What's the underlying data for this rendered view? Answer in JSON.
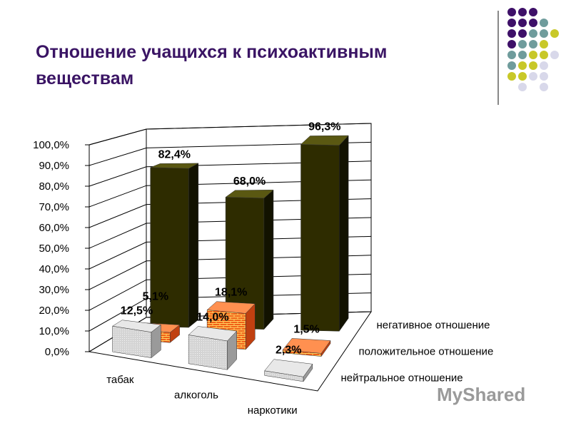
{
  "slide": {
    "title_line1": "Отношение учащихся к психоактивным",
    "title_line2": "веществам",
    "watermark": "MyShared",
    "colors": {
      "title": "#3a1464",
      "purple": "#3e1068",
      "teal": "#6f9c9c",
      "yellow": "#c8c828",
      "lavender": "#d8d8ea"
    }
  },
  "chart_data": {
    "type": "bar",
    "subtype": "3d-column",
    "categories": [
      "табак",
      "алкоголь",
      "наркотики"
    ],
    "series": [
      {
        "name": "нейтральное отношение",
        "values": [
          12.5,
          14.0,
          2.3
        ],
        "labels": [
          "12,5%",
          "14,0%",
          "2,3%"
        ],
        "color": "#cfcfcf"
      },
      {
        "name": "положительное отношение",
        "values": [
          5.1,
          18.1,
          1.5
        ],
        "labels": [
          "5,1%",
          "18,1%",
          "1,5%"
        ],
        "color": "#f06018"
      },
      {
        "name": "негативное отношение",
        "values": [
          82.4,
          68.0,
          96.3
        ],
        "labels": [
          "82,4%",
          "68,0%",
          "96,3%"
        ],
        "color": "#2e2c00"
      }
    ],
    "yticks": [
      "0,0%",
      "10,0%",
      "20,0%",
      "30,0%",
      "40,0%",
      "50,0%",
      "60,0%",
      "70,0%",
      "80,0%",
      "90,0%",
      "100,0%"
    ],
    "ylim": [
      0,
      100
    ],
    "grid": true
  }
}
